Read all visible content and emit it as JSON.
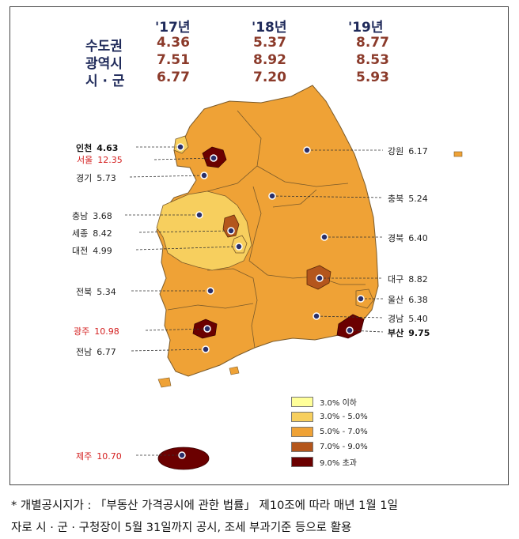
{
  "table": {
    "years": [
      "'17년",
      "'18년",
      "'19년"
    ],
    "rows": [
      {
        "label": "수도권",
        "values": [
          "4.36",
          "5.37",
          "8.77"
        ]
      },
      {
        "label": "광역시",
        "values": [
          "7.51",
          "8.92",
          "8.53"
        ]
      },
      {
        "label": "시 · 군",
        "values": [
          "6.77",
          "7.20",
          "5.93"
        ]
      }
    ]
  },
  "regions": {
    "incheon": {
      "name": "인천",
      "value": "4.63"
    },
    "seoul": {
      "name": "서울",
      "value": "12.35"
    },
    "gyeonggi": {
      "name": "경기",
      "value": "5.73"
    },
    "chungnam": {
      "name": "충남",
      "value": "3.68"
    },
    "sejong": {
      "name": "세종",
      "value": "8.42"
    },
    "daejeon": {
      "name": "대전",
      "value": "4.99"
    },
    "jeonbuk": {
      "name": "전북",
      "value": "5.34"
    },
    "gwangju": {
      "name": "광주",
      "value": "10.98"
    },
    "jeonnam": {
      "name": "전남",
      "value": "6.77"
    },
    "jeju": {
      "name": "제주",
      "value": "10.70"
    },
    "gangwon": {
      "name": "강원",
      "value": "6.17"
    },
    "chungbuk": {
      "name": "충북",
      "value": "5.24"
    },
    "gyeongbuk": {
      "name": "경북",
      "value": "6.40"
    },
    "daegu": {
      "name": "대구",
      "value": "8.82"
    },
    "ulsan": {
      "name": "울산",
      "value": "6.38"
    },
    "gyeongnam": {
      "name": "경남",
      "value": "5.40"
    },
    "busan": {
      "name": "부산",
      "value": "9.75"
    }
  },
  "legend": [
    {
      "label": "3.0% 이하",
      "color": "#ffff99"
    },
    {
      "label": "3.0% - 5.0%",
      "color": "#f7cf5e"
    },
    {
      "label": "5.0% - 7.0%",
      "color": "#efa236"
    },
    {
      "label": "7.0% - 9.0%",
      "color": "#b4561c"
    },
    {
      "label": "9.0% 초과",
      "color": "#6b0000"
    }
  ],
  "note": {
    "line1": "* 개별공시지가 : 「부동산 가격공시에 관한 법률」 제10조에 따라 매년 1월 1일",
    "line2": "자로 시 · 군 · 구청장이 5월 31일까지 공시, 조세 부과기준 등으로 활용"
  }
}
